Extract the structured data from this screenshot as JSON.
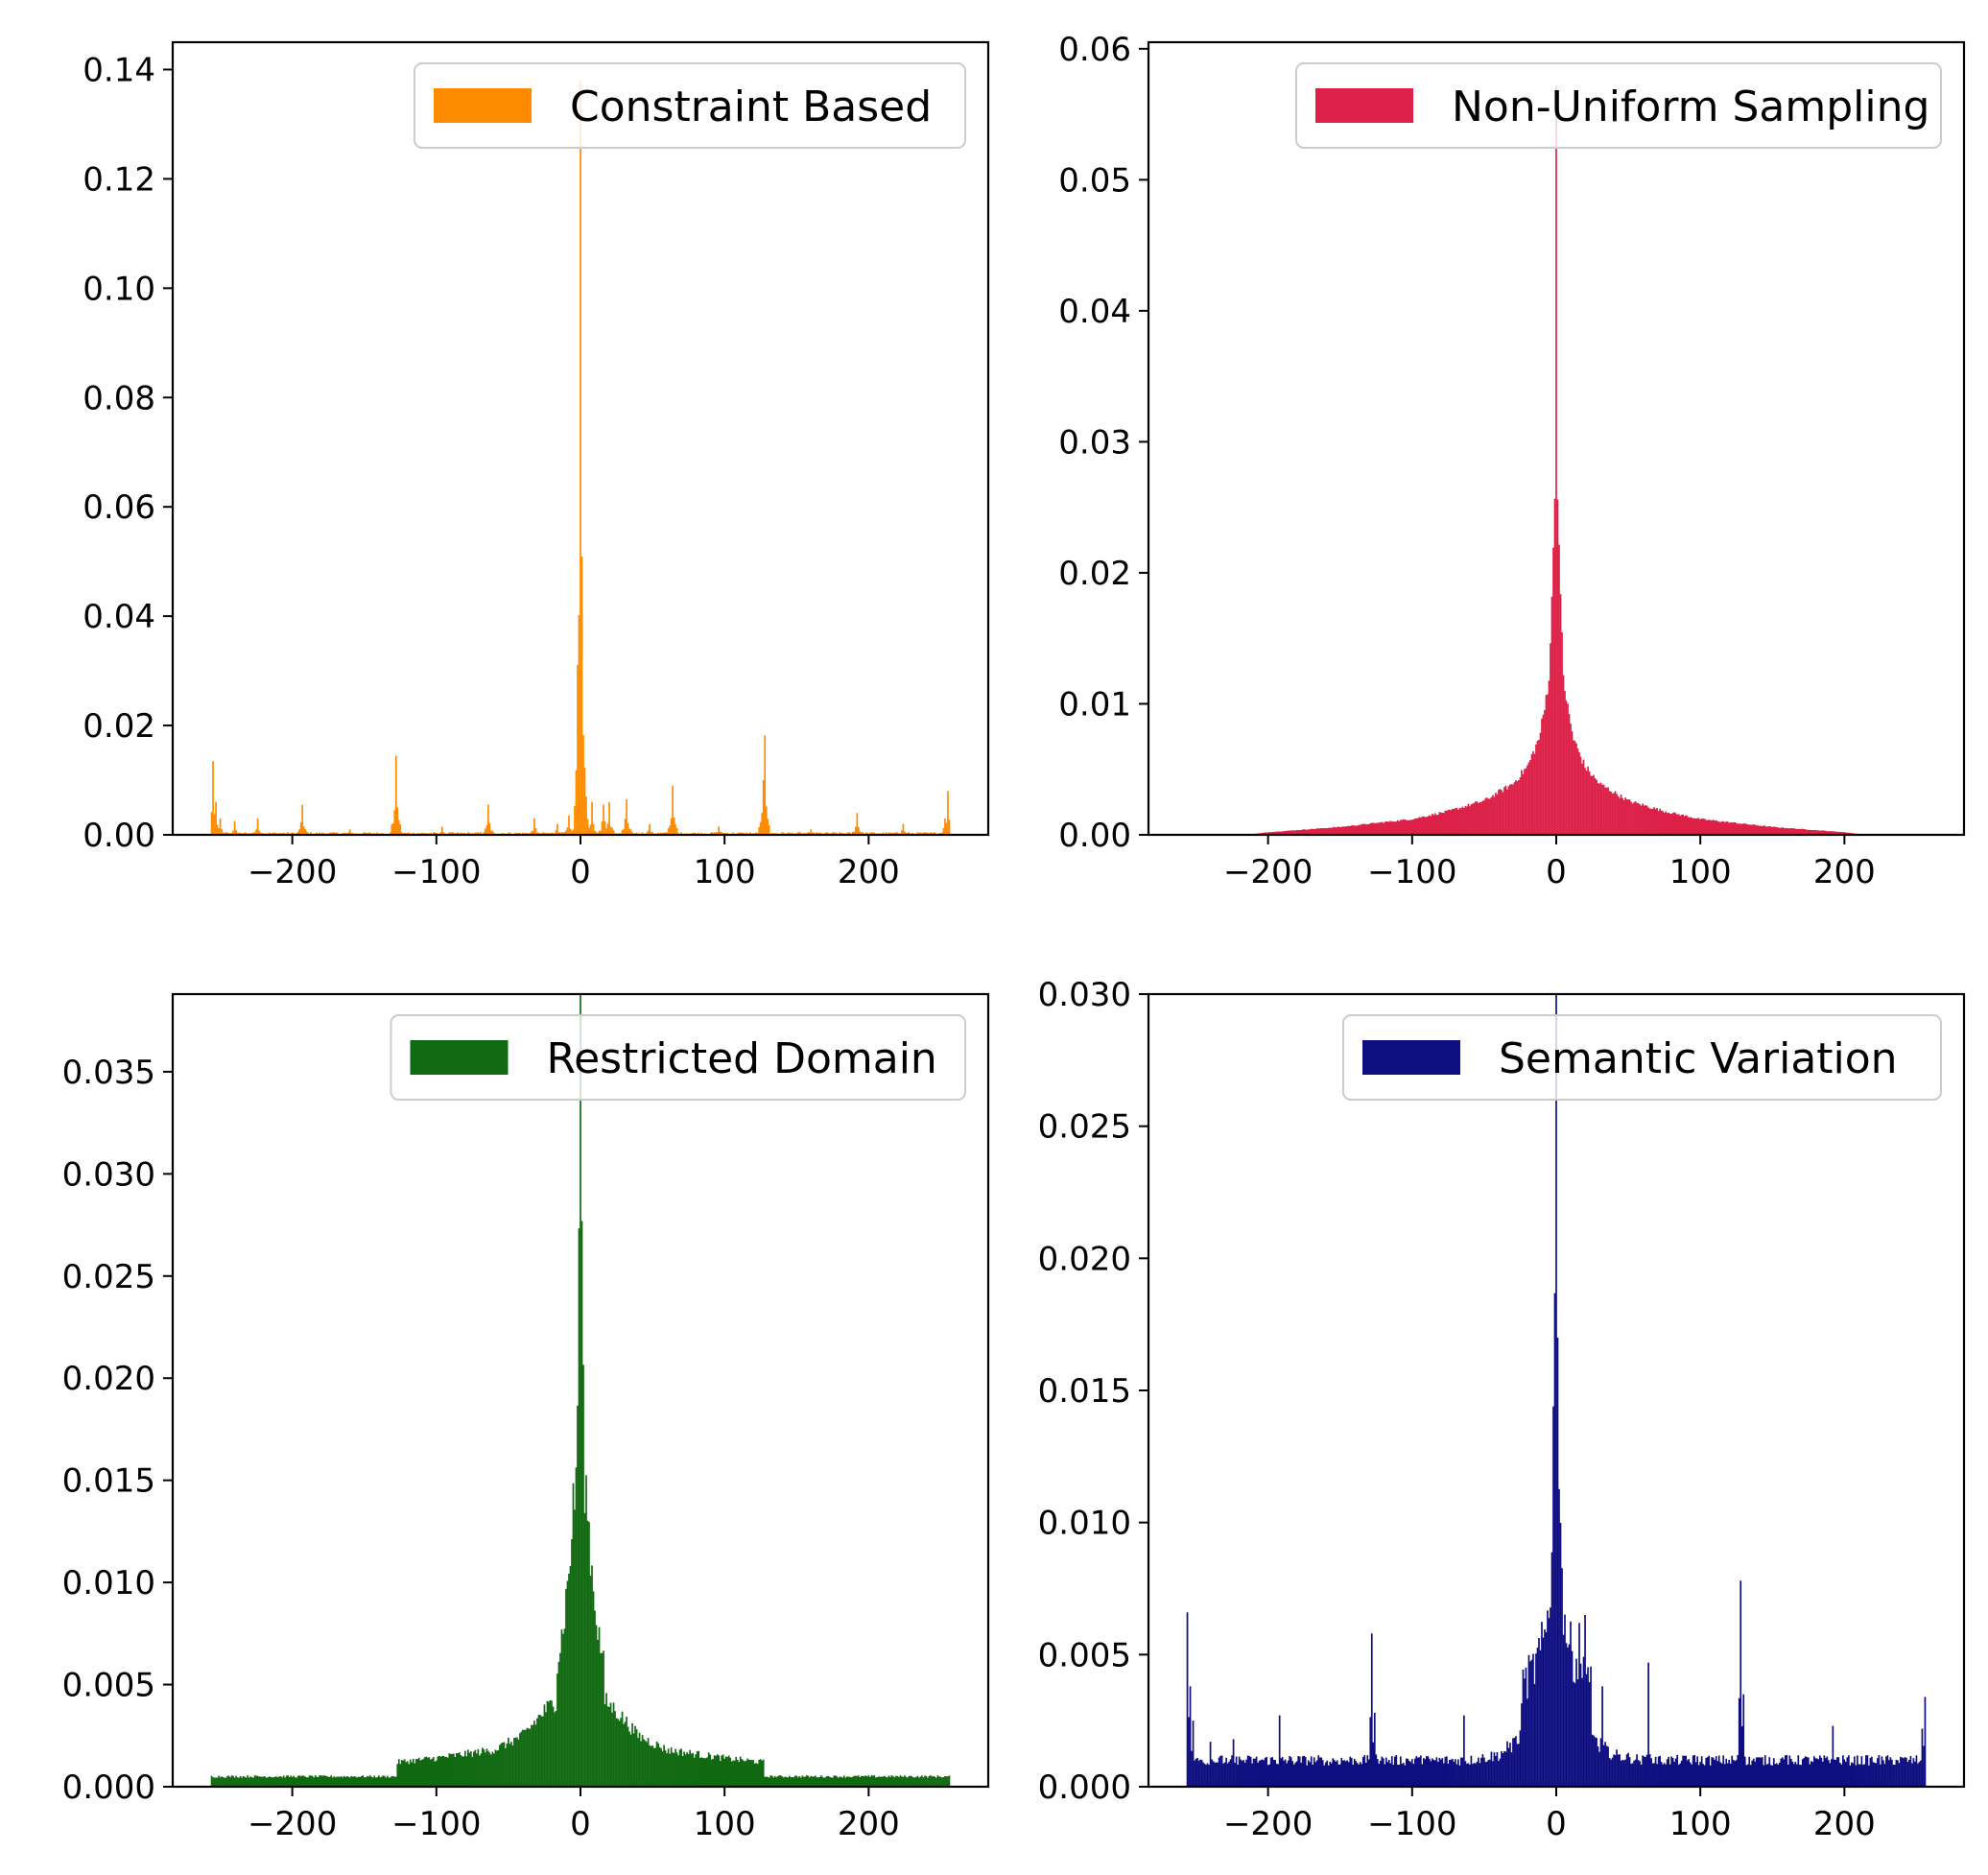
{
  "chart_data": [
    {
      "type": "bar",
      "legend": {
        "label": "Constraint Based",
        "placement": "top-right"
      },
      "color": "#ff8c00",
      "xlim": [
        -283,
        283
      ],
      "ylim": [
        0,
        0.145
      ],
      "xticks": [
        -200,
        -100,
        0,
        100,
        200
      ],
      "xtick_labels": [
        "−200",
        "−100",
        "0",
        "100",
        "200"
      ],
      "yticks": [
        0,
        0.02,
        0.04,
        0.06,
        0.08,
        0.1,
        0.12,
        0.14
      ],
      "ytick_labels": [
        "0.00",
        "0.02",
        "0.04",
        "0.06",
        "0.08",
        "0.10",
        "0.12",
        "0.14"
      ],
      "grid": false,
      "baseline": 0.0003,
      "peaks": [
        {
          "x": -255,
          "y": 0.0135
        },
        {
          "x": -253,
          "y": 0.006
        },
        {
          "x": -250,
          "y": 0.003
        },
        {
          "x": -240,
          "y": 0.0025
        },
        {
          "x": -224,
          "y": 0.003
        },
        {
          "x": -193,
          "y": 0.0055
        },
        {
          "x": -160,
          "y": 0.001
        },
        {
          "x": -128,
          "y": 0.0145
        },
        {
          "x": -127,
          "y": 0.005
        },
        {
          "x": -96,
          "y": 0.0015
        },
        {
          "x": -64,
          "y": 0.0055
        },
        {
          "x": -32,
          "y": 0.003
        },
        {
          "x": -16,
          "y": 0.002
        },
        {
          "x": -8,
          "y": 0.0035
        },
        {
          "x": -3,
          "y": 0.005
        },
        {
          "x": -1,
          "y": 0.035
        },
        {
          "x": 0,
          "y": 0.138
        },
        {
          "x": 1,
          "y": 0.041
        },
        {
          "x": 2,
          "y": 0.0145
        },
        {
          "x": 3,
          "y": 0.011
        },
        {
          "x": 4,
          "y": 0.007
        },
        {
          "x": 8,
          "y": 0.006
        },
        {
          "x": 16,
          "y": 0.0055
        },
        {
          "x": 20,
          "y": 0.006
        },
        {
          "x": 32,
          "y": 0.0065
        },
        {
          "x": 48,
          "y": 0.002
        },
        {
          "x": 64,
          "y": 0.009
        },
        {
          "x": 96,
          "y": 0.0015
        },
        {
          "x": 127,
          "y": 0.01
        },
        {
          "x": 128,
          "y": 0.0182
        },
        {
          "x": 160,
          "y": 0.001
        },
        {
          "x": 192,
          "y": 0.004
        },
        {
          "x": 224,
          "y": 0.002
        },
        {
          "x": 253,
          "y": 0.003
        },
        {
          "x": 255,
          "y": 0.008
        }
      ]
    },
    {
      "type": "bar",
      "legend": {
        "label": "Non-Uniform Sampling",
        "placement": "top-right"
      },
      "color": "#dc2047",
      "xlim": [
        -283,
        283
      ],
      "ylim": [
        0,
        0.0605
      ],
      "xticks": [
        -200,
        -100,
        0,
        100,
        200
      ],
      "xtick_labels": [
        "−200",
        "−100",
        "0",
        "100",
        "200"
      ],
      "yticks": [
        0,
        0.01,
        0.02,
        0.03,
        0.04,
        0.05,
        0.06
      ],
      "ytick_labels": [
        "0.00",
        "0.01",
        "0.02",
        "0.03",
        "0.04",
        "0.05",
        "0.06"
      ],
      "grid": false,
      "points": [
        {
          "x": 0,
          "y": 0.0572
        },
        {
          "x": 1,
          "y": 0.0272
        },
        {
          "x": 2,
          "y": 0.022
        },
        {
          "x": 3,
          "y": 0.0175
        },
        {
          "x": 5,
          "y": 0.0122
        },
        {
          "x": 8,
          "y": 0.0096
        },
        {
          "x": 12,
          "y": 0.0073
        },
        {
          "x": 20,
          "y": 0.0052
        },
        {
          "x": 30,
          "y": 0.0039
        },
        {
          "x": 50,
          "y": 0.0026
        },
        {
          "x": 75,
          "y": 0.0018
        },
        {
          "x": 100,
          "y": 0.0012
        },
        {
          "x": 150,
          "y": 0.0006
        },
        {
          "x": 200,
          "y": 0.0002
        },
        {
          "x": 215,
          "y": 0.0
        }
      ],
      "symmetric": true
    },
    {
      "type": "bar",
      "legend": {
        "label": "Restricted Domain",
        "placement": "top-right"
      },
      "color": "#116911",
      "xlim": [
        -283,
        283
      ],
      "ylim": [
        0,
        0.0388
      ],
      "xticks": [
        -200,
        -100,
        0,
        100,
        200
      ],
      "xtick_labels": [
        "−200",
        "−100",
        "0",
        "100",
        "200"
      ],
      "yticks": [
        0,
        0.005,
        0.01,
        0.015,
        0.02,
        0.025,
        0.03,
        0.035
      ],
      "ytick_labels": [
        "0.000",
        "0.005",
        "0.010",
        "0.015",
        "0.020",
        "0.025",
        "0.030",
        "0.035"
      ],
      "grid": false,
      "points": [
        {
          "x": 0,
          "y": 0.0372
        },
        {
          "x": 1,
          "y": 0.0285
        },
        {
          "x": 2,
          "y": 0.0185
        },
        {
          "x": 3,
          "y": 0.0152
        },
        {
          "x": 5,
          "y": 0.0135
        },
        {
          "x": 8,
          "y": 0.0105
        },
        {
          "x": 12,
          "y": 0.0078
        },
        {
          "x": 16,
          "y": 0.006
        },
        {
          "x": 17,
          "y": 0.0042
        },
        {
          "x": 25,
          "y": 0.0037
        },
        {
          "x": 40,
          "y": 0.0025
        },
        {
          "x": 60,
          "y": 0.0018
        },
        {
          "x": 100,
          "y": 0.0014
        },
        {
          "x": 127,
          "y": 0.0012
        },
        {
          "x": 128,
          "y": 0.0005
        },
        {
          "x": 256,
          "y": 0.0005
        }
      ],
      "symmetric": true,
      "x_extent": [
        -256,
        256
      ]
    },
    {
      "type": "bar",
      "legend": {
        "label": "Semantic Variation",
        "placement": "top-right"
      },
      "color": "#0e0e80",
      "xlim": [
        -283,
        283
      ],
      "ylim": [
        0,
        0.03
      ],
      "xticks": [
        -200,
        -100,
        0,
        100,
        200
      ],
      "xtick_labels": [
        "−200",
        "−100",
        "0",
        "100",
        "200"
      ],
      "yticks": [
        0,
        0.005,
        0.01,
        0.015,
        0.02,
        0.025,
        0.03
      ],
      "ytick_labels": [
        "0.000",
        "0.005",
        "0.010",
        "0.015",
        "0.020",
        "0.025",
        "0.030"
      ],
      "grid": false,
      "baseline": 0.0008,
      "x_extent": [
        -256,
        256
      ],
      "center_envelope": [
        {
          "x": 0,
          "y": 0.03
        },
        {
          "x": 1,
          "y": 0.0195
        },
        {
          "x": 2,
          "y": 0.0135
        },
        {
          "x": 4,
          "y": 0.0075
        },
        {
          "x": 8,
          "y": 0.0055
        },
        {
          "x": 15,
          "y": 0.0045
        },
        {
          "x": 24,
          "y": 0.0038
        },
        {
          "x": 25,
          "y": 0.0018
        },
        {
          "x": 40,
          "y": 0.0012
        },
        {
          "x": 60,
          "y": 0.001
        }
      ],
      "peaks": [
        {
          "x": -256,
          "y": 0.0066
        },
        {
          "x": -254,
          "y": 0.0038
        },
        {
          "x": -252,
          "y": 0.0025
        },
        {
          "x": -240,
          "y": 0.0017
        },
        {
          "x": -224,
          "y": 0.0018
        },
        {
          "x": -192,
          "y": 0.0027
        },
        {
          "x": -160,
          "y": 0.0009
        },
        {
          "x": -128,
          "y": 0.0058
        },
        {
          "x": -126,
          "y": 0.0028
        },
        {
          "x": -96,
          "y": 0.0011
        },
        {
          "x": -64,
          "y": 0.0027
        },
        {
          "x": -32,
          "y": 0.0015
        },
        {
          "x": 16,
          "y": 0.0062
        },
        {
          "x": 20,
          "y": 0.0065
        },
        {
          "x": 32,
          "y": 0.0038
        },
        {
          "x": 64,
          "y": 0.0047
        },
        {
          "x": 96,
          "y": 0.0012
        },
        {
          "x": 128,
          "y": 0.0078
        },
        {
          "x": 130,
          "y": 0.0035
        },
        {
          "x": 160,
          "y": 0.0012
        },
        {
          "x": 192,
          "y": 0.0023
        },
        {
          "x": 224,
          "y": 0.0012
        },
        {
          "x": 254,
          "y": 0.0022
        },
        {
          "x": 256,
          "y": 0.0034
        }
      ]
    }
  ]
}
